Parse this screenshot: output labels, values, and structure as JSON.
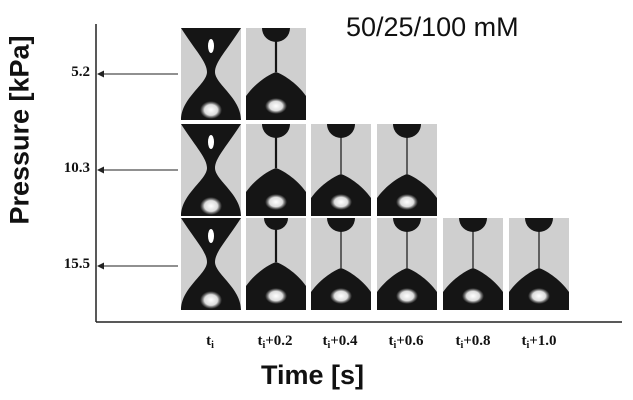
{
  "figure": {
    "condition_label": "50/25/100 mM",
    "y_axis_label": "Pressure [kPa]",
    "x_axis_label": "Time [s]",
    "y_ticks": [
      "5.2",
      "10.3",
      "15.5"
    ],
    "x_ticks": [
      {
        "base": "t",
        "sub": "i",
        "suffix": ""
      },
      {
        "base": "t",
        "sub": "i",
        "suffix": "+0.2"
      },
      {
        "base": "t",
        "sub": "i",
        "suffix": "+0.4"
      },
      {
        "base": "t",
        "sub": "i",
        "suffix": "+0.6"
      },
      {
        "base": "t",
        "sub": "i",
        "suffix": "+0.8"
      },
      {
        "base": "t",
        "sub": "i",
        "suffix": "+1.0"
      }
    ],
    "frames_per_row": [
      2,
      4,
      6
    ]
  },
  "colors": {
    "frame_background": "#cfcfcf",
    "droplet": "#151515",
    "axis": "#222222"
  }
}
